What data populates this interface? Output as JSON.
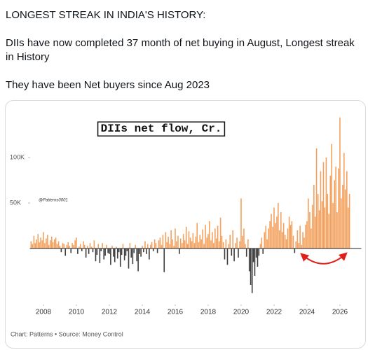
{
  "post": {
    "heading": "LONGEST STREAK IN INDIA'S HISTORY:",
    "paragraphs": [
      "DIIs have now completed 37 month of net buying in August, Longest streak in History",
      "They have been Net buyers since Aug 2023"
    ]
  },
  "chart_data": {
    "type": "bar",
    "title": "DIIs net flow, Cr.",
    "annotation": "@Patterns0001",
    "footer": "Chart: Patterns • Source: Money Control",
    "colors": {
      "positive": "#f4a15d",
      "negative": "#3d3d3d"
    },
    "xlim": [
      2007,
      2027.3
    ],
    "xticks": [
      2008,
      2010,
      2012,
      2014,
      2016,
      2018,
      2020,
      2022,
      2024,
      2026
    ],
    "ylim": [
      -55000,
      150000
    ],
    "yticks": [
      {
        "value": 50000,
        "label": "50K"
      },
      {
        "value": 100000,
        "label": "100K"
      }
    ],
    "x": [
      2007.25,
      2007.33,
      2007.42,
      2007.5,
      2007.58,
      2007.67,
      2007.75,
      2007.83,
      2007.92,
      2008,
      2008.08,
      2008.17,
      2008.25,
      2008.33,
      2008.42,
      2008.5,
      2008.58,
      2008.67,
      2008.75,
      2008.83,
      2008.92,
      2009,
      2009.08,
      2009.17,
      2009.25,
      2009.33,
      2009.42,
      2009.5,
      2009.58,
      2009.67,
      2009.75,
      2009.83,
      2009.92,
      2010,
      2010.08,
      2010.17,
      2010.25,
      2010.33,
      2010.42,
      2010.5,
      2010.58,
      2010.67,
      2010.75,
      2010.83,
      2010.92,
      2011,
      2011.08,
      2011.17,
      2011.25,
      2011.33,
      2011.42,
      2011.5,
      2011.58,
      2011.67,
      2011.75,
      2011.83,
      2011.92,
      2012,
      2012.08,
      2012.17,
      2012.25,
      2012.33,
      2012.42,
      2012.5,
      2012.58,
      2012.67,
      2012.75,
      2012.83,
      2012.92,
      2013,
      2013.08,
      2013.17,
      2013.25,
      2013.33,
      2013.42,
      2013.5,
      2013.58,
      2013.67,
      2013.75,
      2013.83,
      2013.92,
      2014,
      2014.08,
      2014.17,
      2014.25,
      2014.33,
      2014.42,
      2014.5,
      2014.58,
      2014.67,
      2014.75,
      2014.83,
      2014.92,
      2015,
      2015.08,
      2015.17,
      2015.25,
      2015.33,
      2015.42,
      2015.5,
      2015.58,
      2015.67,
      2015.75,
      2015.83,
      2015.92,
      2016,
      2016.08,
      2016.17,
      2016.25,
      2016.33,
      2016.42,
      2016.5,
      2016.58,
      2016.67,
      2016.75,
      2016.83,
      2016.92,
      2017,
      2017.08,
      2017.17,
      2017.25,
      2017.33,
      2017.42,
      2017.5,
      2017.58,
      2017.67,
      2017.75,
      2017.83,
      2017.92,
      2018,
      2018.08,
      2018.17,
      2018.25,
      2018.33,
      2018.42,
      2018.5,
      2018.58,
      2018.67,
      2018.75,
      2018.83,
      2018.92,
      2019,
      2019.08,
      2019.17,
      2019.25,
      2019.33,
      2019.42,
      2019.5,
      2019.58,
      2019.67,
      2019.75,
      2019.83,
      2019.92,
      2020,
      2020.08,
      2020.17,
      2020.25,
      2020.33,
      2020.42,
      2020.5,
      2020.58,
      2020.67,
      2020.75,
      2020.83,
      2020.92,
      2021,
      2021.08,
      2021.17,
      2021.25,
      2021.33,
      2021.42,
      2021.5,
      2021.58,
      2021.67,
      2021.75,
      2021.83,
      2021.92,
      2022,
      2022.08,
      2022.17,
      2022.25,
      2022.33,
      2022.42,
      2022.5,
      2022.58,
      2022.67,
      2022.75,
      2022.83,
      2022.92,
      2023,
      2023.08,
      2023.17,
      2023.25,
      2023.33,
      2023.42,
      2023.5,
      2023.58,
      2023.67,
      2023.75,
      2023.83,
      2023.92,
      2024,
      2024.08,
      2024.17,
      2024.25,
      2024.33,
      2024.42,
      2024.5,
      2024.58,
      2024.67,
      2024.75,
      2024.83,
      2024.92,
      2025,
      2025.08,
      2025.17,
      2025.25,
      2025.33,
      2025.42,
      2025.5,
      2025.58,
      2025.67,
      2025.75,
      2025.83,
      2025.92,
      2026,
      2026.08,
      2026.17,
      2026.25,
      2026.33,
      2026.42,
      2026.5,
      2026.58
    ],
    "values": [
      8000,
      5000,
      14000,
      6000,
      10000,
      16000,
      7000,
      12000,
      9000,
      18000,
      6000,
      11000,
      15000,
      4000,
      9000,
      13000,
      7000,
      10000,
      12000,
      5000,
      8000,
      3000,
      -4000,
      6000,
      5000,
      -8000,
      4000,
      7000,
      3000,
      -5000,
      6000,
      4000,
      9000,
      12000,
      -6000,
      2000,
      5000,
      -3000,
      8000,
      4000,
      -10000,
      3000,
      -6000,
      6000,
      2000,
      -4000,
      9000,
      -14000,
      -7000,
      5000,
      -16000,
      -3000,
      6000,
      -12000,
      -8000,
      4000,
      -5000,
      -6000,
      -18000,
      3000,
      -9000,
      -15000,
      2000,
      -11000,
      -4000,
      -20000,
      -7000,
      5000,
      -13000,
      -8000,
      -3000,
      -22000,
      6000,
      -10000,
      -17000,
      -5000,
      4000,
      -14000,
      -25000,
      -6000,
      -9000,
      3000,
      -4000,
      8000,
      -6000,
      5000,
      -12000,
      4000,
      7000,
      -3000,
      10000,
      6000,
      -5000,
      9000,
      12000,
      4000,
      15000,
      -26000,
      18000,
      7000,
      13000,
      5000,
      20000,
      10000,
      3000,
      22000,
      8000,
      14000,
      -6000,
      11000,
      6000,
      16000,
      9000,
      24000,
      5000,
      19000,
      12000,
      8000,
      17000,
      6000,
      13000,
      28000,
      7000,
      15000,
      10000,
      21000,
      5000,
      26000,
      12000,
      16000,
      30000,
      9000,
      18000,
      6000,
      22000,
      11000,
      25000,
      8000,
      34000,
      14000,
      7000,
      -12000,
      10000,
      -18000,
      5000,
      15000,
      -8000,
      20000,
      -14000,
      6000,
      12000,
      -10000,
      8000,
      55000,
      14000,
      22000,
      5000,
      -9000,
      10000,
      -25000,
      -40000,
      -49000,
      -15000,
      -30000,
      -10000,
      -20000,
      -8000,
      5000,
      12000,
      -6000,
      18000,
      25000,
      10000,
      22000,
      30000,
      38000,
      24000,
      45000,
      28000,
      35000,
      50000,
      20000,
      40000,
      18000,
      28000,
      15000,
      10000,
      22000,
      35000,
      26000,
      30000,
      14000,
      -5000,
      8000,
      20000,
      6000,
      25000,
      4000,
      18000,
      12000,
      26000,
      30000,
      55000,
      40000,
      22000,
      48000,
      70000,
      35000,
      110000,
      60000,
      42000,
      85000,
      52000,
      95000,
      45000,
      100000,
      60000,
      38000,
      80000,
      115000,
      50000,
      75000,
      90000,
      40000,
      88000,
      144000,
      55000,
      70000,
      105000,
      65000,
      85000,
      45000,
      60000
    ]
  }
}
